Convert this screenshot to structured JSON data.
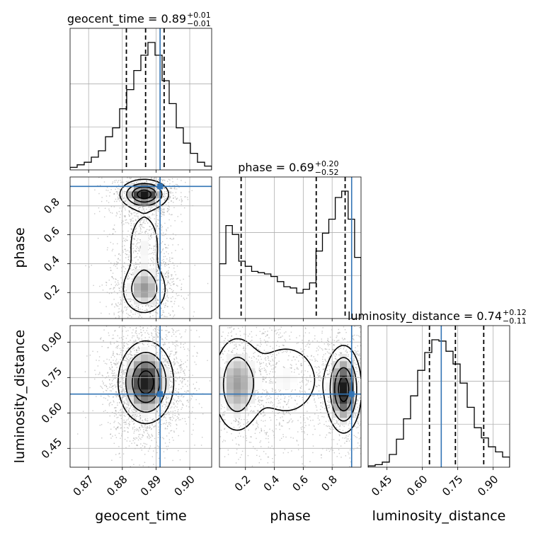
{
  "chart_data": {
    "type": "corner",
    "parameters": [
      "geocent_time",
      "phase",
      "luminosity_distance"
    ],
    "truths": {
      "geocent_time": 0.8912,
      "phase": 0.935,
      "luminosity_distance": 0.68
    },
    "truth_color": "#3274b5",
    "ranges": {
      "geocent_time": [
        0.8645,
        0.9065
      ],
      "phase": [
        0.02,
        1.0
      ],
      "luminosity_distance": [
        0.37,
        0.97
      ]
    },
    "ticks": {
      "geocent_time": [
        {
          "v": 0.87,
          "label": "0.87"
        },
        {
          "v": 0.88,
          "label": "0.88"
        },
        {
          "v": 0.89,
          "label": "0.89"
        },
        {
          "v": 0.9,
          "label": "0.90"
        }
      ],
      "phase": [
        {
          "v": 0.2,
          "label": "0.2"
        },
        {
          "v": 0.4,
          "label": "0.4"
        },
        {
          "v": 0.6,
          "label": "0.6"
        },
        {
          "v": 0.8,
          "label": "0.8"
        }
      ],
      "luminosity_distance": [
        {
          "v": 0.45,
          "label": "0.45"
        },
        {
          "v": 0.6,
          "label": "0.60"
        },
        {
          "v": 0.75,
          "label": "0.75"
        },
        {
          "v": 0.9,
          "label": "0.90"
        }
      ]
    },
    "titles": [
      {
        "param": "geocent_time",
        "main": "geocent_time = 0.89",
        "plus": "+0.01",
        "minus": "−0.01"
      },
      {
        "param": "phase",
        "main": "phase = 0.69",
        "plus": "+0.20",
        "minus": "−0.52"
      },
      {
        "param": "luminosity_distance",
        "main": "luminosity_distance = 0.74",
        "plus": "+0.12",
        "minus": "−0.11"
      }
    ],
    "quantiles": {
      "geocent_time": [
        0.8812,
        0.8869,
        0.8924
      ],
      "phase": [
        0.17,
        0.69,
        0.89
      ],
      "luminosity_distance": [
        0.63,
        0.74,
        0.86
      ]
    },
    "histograms": {
      "geocent_time": [
        0.02,
        0.04,
        0.06,
        0.1,
        0.15,
        0.26,
        0.33,
        0.48,
        0.63,
        0.78,
        0.9,
        1.0,
        0.9,
        0.7,
        0.52,
        0.33,
        0.21,
        0.13,
        0.06,
        0.03
      ],
      "phase": [
        0.43,
        0.73,
        0.66,
        0.45,
        0.41,
        0.37,
        0.36,
        0.35,
        0.33,
        0.29,
        0.25,
        0.24,
        0.2,
        0.23,
        0.28,
        0.53,
        0.67,
        0.78,
        0.95,
        1.0,
        0.78,
        0.48
      ],
      "luminosity_distance": [
        0.01,
        0.02,
        0.04,
        0.1,
        0.22,
        0.38,
        0.56,
        0.76,
        0.9,
        1.0,
        0.99,
        0.91,
        0.81,
        0.66,
        0.47,
        0.31,
        0.23,
        0.16,
        0.12,
        0.08
      ]
    },
    "density_peaks": {
      "geocent_time__phase": [
        {
          "x": 0.8865,
          "y": 0.88,
          "sx": 0.0035,
          "sy": 0.05,
          "w": 1.0
        },
        {
          "x": 0.8865,
          "y": 0.22,
          "sx": 0.0035,
          "sy": 0.09,
          "w": 0.55
        },
        {
          "x": 0.8865,
          "y": 0.52,
          "sx": 0.003,
          "sy": 0.15,
          "w": 0.28
        }
      ],
      "geocent_time__luminosity_distance": [
        {
          "x": 0.887,
          "y": 0.73,
          "sx": 0.004,
          "sy": 0.085,
          "w": 1.0
        }
      ],
      "phase__luminosity_distance": [
        {
          "x": 0.88,
          "y": 0.7,
          "sx": 0.06,
          "sy": 0.09,
          "w": 1.0
        },
        {
          "x": 0.14,
          "y": 0.72,
          "sx": 0.09,
          "sy": 0.11,
          "w": 0.55
        },
        {
          "x": 0.48,
          "y": 0.74,
          "sx": 0.15,
          "sy": 0.1,
          "w": 0.28
        }
      ]
    }
  }
}
